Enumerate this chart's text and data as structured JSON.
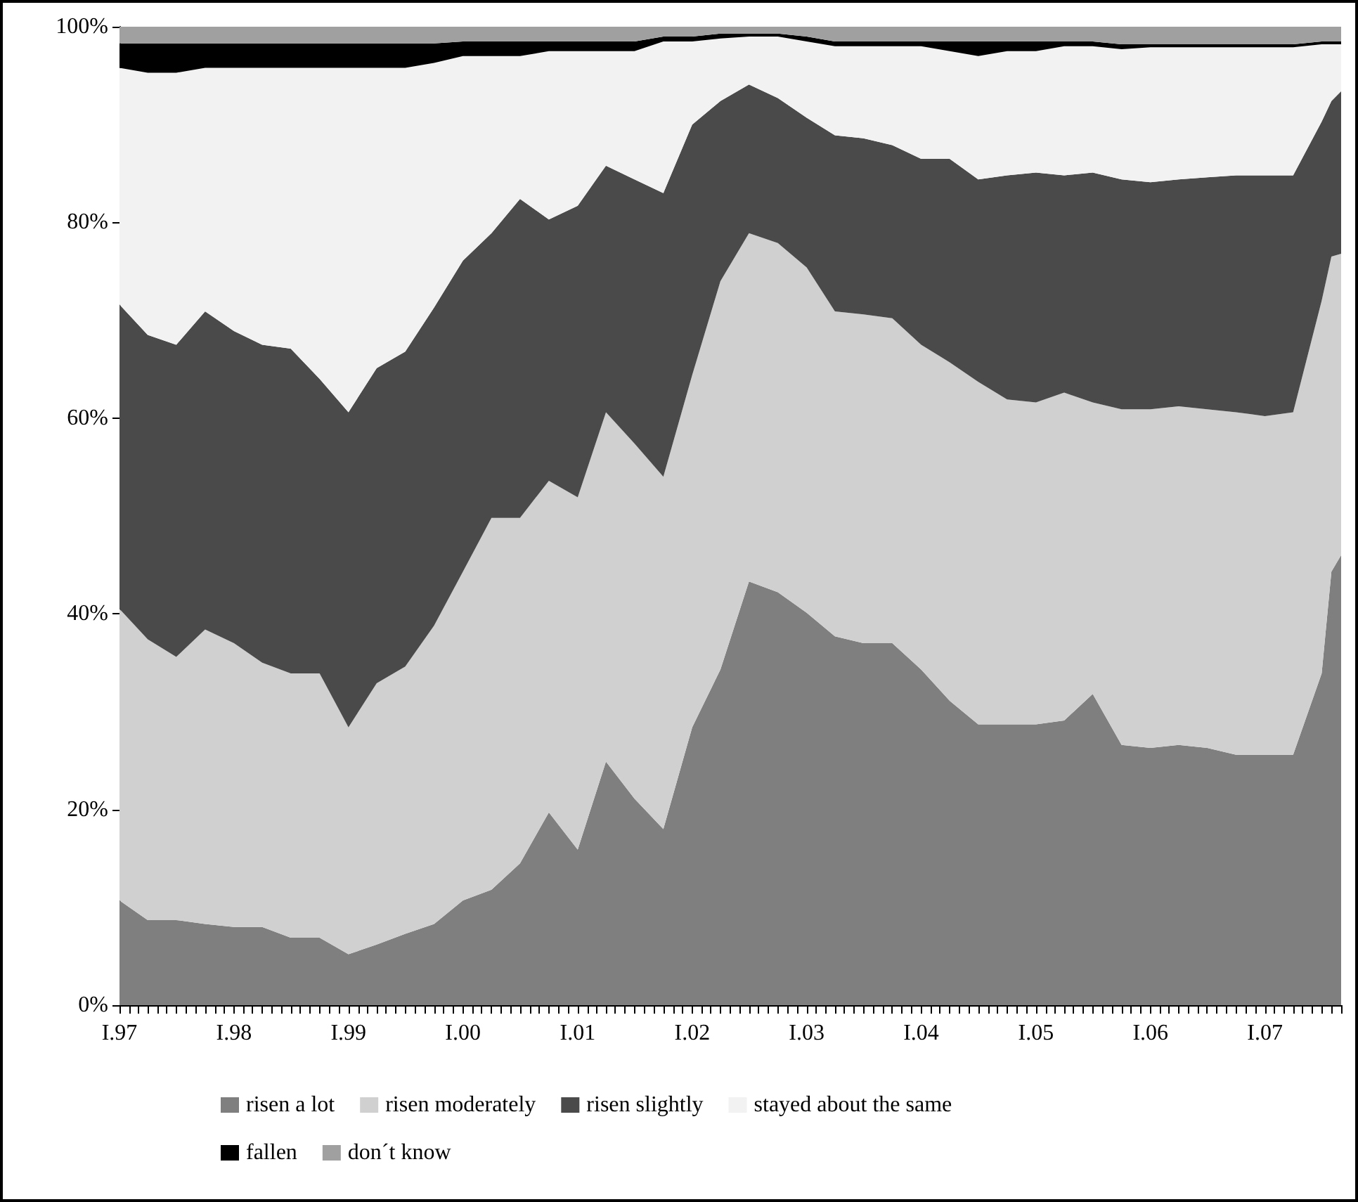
{
  "chart_data": {
    "type": "area",
    "stacked": true,
    "legend": "bottom",
    "x": [
      "1997-01",
      "1997-04",
      "1997-07",
      "1997-10",
      "1998-01",
      "1998-04",
      "1998-07",
      "1998-10",
      "1999-01",
      "1999-04",
      "1999-07",
      "1999-10",
      "2000-01",
      "2000-04",
      "2000-07",
      "2000-10",
      "2001-01",
      "2001-04",
      "2001-07",
      "2001-10",
      "2002-01",
      "2002-04",
      "2002-07",
      "2002-10",
      "2003-01",
      "2003-04",
      "2003-07",
      "2003-10",
      "2004-01",
      "2004-04",
      "2004-07",
      "2004-10",
      "2005-01",
      "2005-04",
      "2005-07",
      "2005-10",
      "2006-01",
      "2006-04",
      "2006-07",
      "2006-10",
      "2007-01",
      "2007-04",
      "2007-07",
      "2007-08",
      "2007-09"
    ],
    "xlim": [
      "1997-01",
      "2007-09"
    ],
    "xticks": [
      {
        "value": "1997-01",
        "label": "I.97"
      },
      {
        "value": "1997-02",
        "label": null
      },
      {
        "value": "1997-03",
        "label": null
      },
      {
        "value": "1997-04",
        "label": null
      },
      {
        "value": "1997-05",
        "label": null
      },
      {
        "value": "1997-06",
        "label": null
      },
      {
        "value": "1997-07",
        "label": null
      },
      {
        "value": "1997-08",
        "label": null
      },
      {
        "value": "1997-09",
        "label": null
      },
      {
        "value": "1997-10",
        "label": null
      },
      {
        "value": "1997-11",
        "label": null
      },
      {
        "value": "1997-12",
        "label": null
      },
      {
        "value": "1998-01",
        "label": "I.98"
      },
      {
        "value": "1998-02",
        "label": null
      },
      {
        "value": "1998-03",
        "label": null
      },
      {
        "value": "1998-04",
        "label": null
      },
      {
        "value": "1998-05",
        "label": null
      },
      {
        "value": "1998-06",
        "label": null
      },
      {
        "value": "1998-07",
        "label": null
      },
      {
        "value": "1998-08",
        "label": null
      },
      {
        "value": "1998-09",
        "label": null
      },
      {
        "value": "1998-10",
        "label": null
      },
      {
        "value": "1998-11",
        "label": null
      },
      {
        "value": "1998-12",
        "label": null
      },
      {
        "value": "1999-01",
        "label": "I.99"
      },
      {
        "value": "1999-02",
        "label": null
      },
      {
        "value": "1999-03",
        "label": null
      },
      {
        "value": "1999-04",
        "label": null
      },
      {
        "value": "1999-05",
        "label": null
      },
      {
        "value": "1999-06",
        "label": null
      },
      {
        "value": "1999-07",
        "label": null
      },
      {
        "value": "1999-08",
        "label": null
      },
      {
        "value": "1999-09",
        "label": null
      },
      {
        "value": "1999-10",
        "label": null
      },
      {
        "value": "1999-11",
        "label": null
      },
      {
        "value": "1999-12",
        "label": null
      },
      {
        "value": "2000-01",
        "label": "I.00"
      },
      {
        "value": "2000-02",
        "label": null
      },
      {
        "value": "2000-03",
        "label": null
      },
      {
        "value": "2000-04",
        "label": null
      },
      {
        "value": "2000-05",
        "label": null
      },
      {
        "value": "2000-06",
        "label": null
      },
      {
        "value": "2000-07",
        "label": null
      },
      {
        "value": "2000-08",
        "label": null
      },
      {
        "value": "2000-09",
        "label": null
      },
      {
        "value": "2000-10",
        "label": null
      },
      {
        "value": "2000-11",
        "label": null
      },
      {
        "value": "2000-12",
        "label": null
      },
      {
        "value": "2001-01",
        "label": "I.01"
      },
      {
        "value": "2001-02",
        "label": null
      },
      {
        "value": "2001-03",
        "label": null
      },
      {
        "value": "2001-04",
        "label": null
      },
      {
        "value": "2001-05",
        "label": null
      },
      {
        "value": "2001-06",
        "label": null
      },
      {
        "value": "2001-07",
        "label": null
      },
      {
        "value": "2001-08",
        "label": null
      },
      {
        "value": "2001-09",
        "label": null
      },
      {
        "value": "2001-10",
        "label": null
      },
      {
        "value": "2001-11",
        "label": null
      },
      {
        "value": "2001-12",
        "label": null
      },
      {
        "value": "2002-01",
        "label": "I.02"
      },
      {
        "value": "2002-02",
        "label": null
      },
      {
        "value": "2002-03",
        "label": null
      },
      {
        "value": "2002-04",
        "label": null
      },
      {
        "value": "2002-05",
        "label": null
      },
      {
        "value": "2002-06",
        "label": null
      },
      {
        "value": "2002-07",
        "label": null
      },
      {
        "value": "2002-08",
        "label": null
      },
      {
        "value": "2002-09",
        "label": null
      },
      {
        "value": "2002-10",
        "label": null
      },
      {
        "value": "2002-11",
        "label": null
      },
      {
        "value": "2002-12",
        "label": null
      },
      {
        "value": "2003-01",
        "label": "I.03"
      },
      {
        "value": "2003-02",
        "label": null
      },
      {
        "value": "2003-03",
        "label": null
      },
      {
        "value": "2003-04",
        "label": null
      },
      {
        "value": "2003-05",
        "label": null
      },
      {
        "value": "2003-06",
        "label": null
      },
      {
        "value": "2003-07",
        "label": null
      },
      {
        "value": "2003-08",
        "label": null
      },
      {
        "value": "2003-09",
        "label": null
      },
      {
        "value": "2003-10",
        "label": null
      },
      {
        "value": "2003-11",
        "label": null
      },
      {
        "value": "2003-12",
        "label": null
      },
      {
        "value": "2004-01",
        "label": "I.04"
      },
      {
        "value": "2004-02",
        "label": null
      },
      {
        "value": "2004-03",
        "label": null
      },
      {
        "value": "2004-04",
        "label": null
      },
      {
        "value": "2004-05",
        "label": null
      },
      {
        "value": "2004-06",
        "label": null
      },
      {
        "value": "2004-07",
        "label": null
      },
      {
        "value": "2004-08",
        "label": null
      },
      {
        "value": "2004-09",
        "label": null
      },
      {
        "value": "2004-10",
        "label": null
      },
      {
        "value": "2004-11",
        "label": null
      },
      {
        "value": "2004-12",
        "label": null
      },
      {
        "value": "2005-01",
        "label": "I.05"
      },
      {
        "value": "2005-02",
        "label": null
      },
      {
        "value": "2005-03",
        "label": null
      },
      {
        "value": "2005-04",
        "label": null
      },
      {
        "value": "2005-05",
        "label": null
      },
      {
        "value": "2005-06",
        "label": null
      },
      {
        "value": "2005-07",
        "label": null
      },
      {
        "value": "2005-08",
        "label": null
      },
      {
        "value": "2005-09",
        "label": null
      },
      {
        "value": "2005-10",
        "label": null
      },
      {
        "value": "2005-11",
        "label": null
      },
      {
        "value": "2005-12",
        "label": null
      },
      {
        "value": "2006-01",
        "label": "I.06"
      },
      {
        "value": "2006-02",
        "label": null
      },
      {
        "value": "2006-03",
        "label": null
      },
      {
        "value": "2006-04",
        "label": null
      },
      {
        "value": "2006-05",
        "label": null
      },
      {
        "value": "2006-06",
        "label": null
      },
      {
        "value": "2006-07",
        "label": null
      },
      {
        "value": "2006-08",
        "label": null
      },
      {
        "value": "2006-09",
        "label": null
      },
      {
        "value": "2006-10",
        "label": null
      },
      {
        "value": "2006-11",
        "label": null
      },
      {
        "value": "2006-12",
        "label": null
      },
      {
        "value": "2007-01",
        "label": "I.07"
      },
      {
        "value": "2007-02",
        "label": null
      },
      {
        "value": "2007-03",
        "label": null
      },
      {
        "value": "2007-04",
        "label": null
      },
      {
        "value": "2007-05",
        "label": null
      },
      {
        "value": "2007-06",
        "label": null
      },
      {
        "value": "2007-07",
        "label": null
      },
      {
        "value": "2007-08",
        "label": null
      },
      {
        "value": "2007-09",
        "label": null
      }
    ],
    "ylim": [
      0,
      100
    ],
    "yticks": [
      {
        "value": 0,
        "label": "0%"
      },
      {
        "value": 20,
        "label": "20%"
      },
      {
        "value": 40,
        "label": "40%"
      },
      {
        "value": 60,
        "label": "60%"
      },
      {
        "value": 80,
        "label": "80%"
      },
      {
        "value": 100,
        "label": "100%"
      }
    ],
    "series": [
      {
        "name": "risen a lot",
        "color": "#7f7f7f",
        "values": [
          10.7,
          8.7,
          8.7,
          8.3,
          8,
          8,
          6.9,
          6.9,
          5.2,
          6.2,
          7.3,
          8.3,
          10.7,
          11.8,
          14.5,
          19.7,
          15.9,
          24.9,
          21.1,
          18,
          28.4,
          34.3,
          43.3,
          42.2,
          40.1,
          37.7,
          37,
          37,
          34.3,
          31.1,
          28.7,
          28.7,
          28.7,
          29.1,
          31.8,
          26.6,
          26.3,
          26.6,
          26.3,
          25.6,
          25.6,
          25.6,
          33.9,
          44.3,
          46
        ]
      },
      {
        "name": "risen moderately",
        "color": "#d0d0d0",
        "values": [
          29.8,
          28.7,
          26.9,
          30.1,
          29,
          27,
          27,
          27,
          23.2,
          26.7,
          27.3,
          30.5,
          33.6,
          38,
          35.3,
          33.9,
          36,
          35.7,
          36.3,
          36,
          36,
          39.7,
          35.6,
          35.7,
          35.3,
          33.2,
          33.6,
          33.2,
          33.2,
          34.6,
          35,
          33.2,
          32.9,
          33.5,
          29.8,
          34.3,
          34.6,
          34.6,
          34.6,
          35,
          34.6,
          35,
          38.1,
          32.2,
          30.8
        ]
      },
      {
        "name": "risen slightly",
        "color": "#4a4a4a",
        "values": [
          31.1,
          31.1,
          31.9,
          32.5,
          31.9,
          32.5,
          33.2,
          30.1,
          32.2,
          32.2,
          32.2,
          32.5,
          31.8,
          29.1,
          32.6,
          26.7,
          29.8,
          25.2,
          27,
          29,
          25.6,
          18.4,
          15.2,
          14.8,
          15.3,
          18,
          18,
          17.7,
          19,
          20.8,
          20.7,
          22.9,
          23.5,
          22.2,
          23.5,
          23.5,
          23.2,
          23.2,
          23.7,
          24.2,
          24.6,
          24.2,
          18.3,
          15.9,
          16.6
        ]
      },
      {
        "name": "stayed about the same",
        "color": "#f2f2f2",
        "values": [
          24.2,
          26.8,
          27.8,
          24.9,
          26.9,
          28.3,
          28.7,
          31.8,
          35.2,
          30.7,
          29,
          25,
          20.9,
          18.1,
          14.6,
          17.2,
          15.8,
          11.7,
          13.1,
          15.5,
          8.5,
          6.4,
          4.9,
          6.3,
          7.8,
          9.1,
          9.4,
          10.1,
          11.5,
          11,
          12.6,
          12.7,
          12.4,
          13.2,
          12.9,
          13.3,
          13.8,
          13.5,
          13.3,
          13.1,
          13.1,
          13.1,
          7.9,
          5.8,
          4.8
        ]
      },
      {
        "name": "fallen",
        "color": "#000000",
        "values": [
          2.5,
          3,
          3,
          2.5,
          2.5,
          2.5,
          2.5,
          2.5,
          2.5,
          2.5,
          2.5,
          2,
          1.5,
          1.5,
          1.5,
          1,
          1,
          1,
          1,
          0.5,
          0.5,
          0.5,
          0.3,
          0.3,
          0.5,
          0.5,
          0.5,
          0.5,
          0.5,
          1,
          1.5,
          1,
          1,
          0.5,
          0.5,
          0.5,
          0.3,
          0.3,
          0.3,
          0.3,
          0.3,
          0.3,
          0.3,
          0.3,
          0.3
        ]
      },
      {
        "name": "don´t know",
        "color": "#a0a0a0",
        "values": [
          1.7,
          1.7,
          1.7,
          1.7,
          1.7,
          1.7,
          1.7,
          1.7,
          1.7,
          1.7,
          1.7,
          1.7,
          1.5,
          1.5,
          1.5,
          1.5,
          1.5,
          1.5,
          1.5,
          1,
          1,
          0.7,
          0.7,
          0.7,
          1,
          1.5,
          1.5,
          1.5,
          1.5,
          1.5,
          1.5,
          1.5,
          1.5,
          1.5,
          1.5,
          1.8,
          1.8,
          1.8,
          1.8,
          1.8,
          1.8,
          1.8,
          1.5,
          1.5,
          1.5
        ]
      }
    ]
  }
}
